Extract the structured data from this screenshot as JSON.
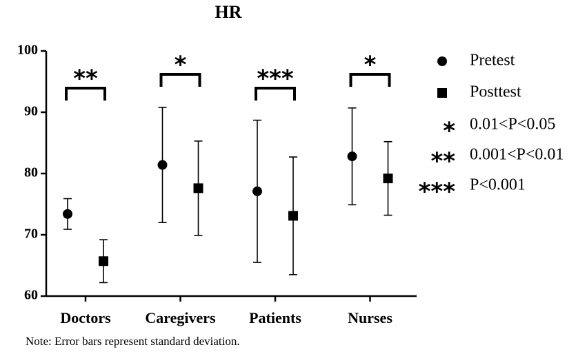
{
  "chart_data": {
    "type": "dot",
    "title": "HR",
    "categories": [
      "Doctors",
      "Caregivers",
      "Patients",
      "Nurses"
    ],
    "series": [
      {
        "name": "Pretest",
        "marker": "circle",
        "color": "#000000",
        "values": [
          73.4,
          81.4,
          77.1,
          82.8
        ],
        "errors": [
          2.5,
          9.4,
          11.6,
          7.9
        ]
      },
      {
        "name": "Posttest",
        "marker": "square",
        "color": "#000000",
        "values": [
          65.7,
          77.6,
          73.1,
          79.2
        ],
        "errors": [
          3.5,
          7.7,
          9.6,
          6.0
        ]
      }
    ],
    "significance": [
      "**",
      "*",
      "***",
      "*"
    ],
    "significance_legend": [
      {
        "symbol": "*",
        "label": "0.01<P<0.05"
      },
      {
        "symbol": "**",
        "label": "0.001<P<0.01"
      },
      {
        "symbol": "***",
        "label": "P<0.001"
      }
    ],
    "ylim": [
      60,
      100
    ],
    "yticks": [
      60,
      70,
      80,
      90,
      100
    ],
    "note": "Note: Error bars represent standard deviation."
  }
}
